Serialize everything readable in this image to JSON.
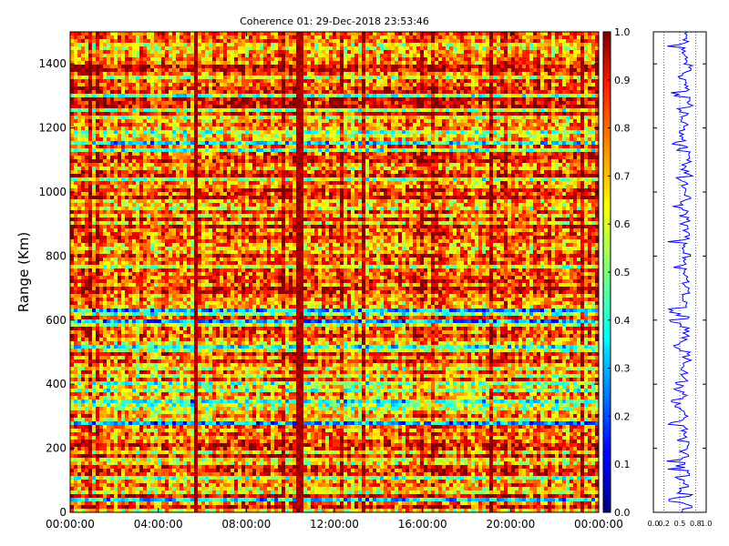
{
  "chart_data": [
    {
      "type": "heatmap",
      "title": "Coherence 01: 29-Dec-2018 23:53:46",
      "xlabel": "",
      "ylabel": "Range (Km)",
      "x_range": [
        "00:00:00",
        "24:00:00"
      ],
      "x_ticks": [
        "00:00:00",
        "04:00:00",
        "08:00:00",
        "12:00:00",
        "16:00:00",
        "20:00:00",
        "00:00:00"
      ],
      "y_range": [
        0,
        1500
      ],
      "y_ticks": [
        0,
        200,
        400,
        600,
        800,
        1000,
        1200,
        1400
      ],
      "color_range": [
        0.0,
        1.0
      ],
      "colorbar_ticks": [
        "0.0",
        "0.1",
        "0.2",
        "0.3",
        "0.4",
        "0.5",
        "0.6",
        "0.7",
        "0.8",
        "0.9",
        "1.0"
      ],
      "colormap": "jet",
      "grid": false,
      "dark_columns_hours": [
        5.7,
        10.3,
        10.5
      ]
    },
    {
      "type": "line",
      "title": "",
      "xlabel": "",
      "ylabel": "",
      "x_range": [
        0.0,
        1.0
      ],
      "x_ticks": [
        "0.0",
        "0.2",
        "0.5",
        "0.8",
        "1.0"
      ],
      "y_range": [
        0,
        1500
      ],
      "line_color": "#0000ff",
      "grid": true
    }
  ]
}
